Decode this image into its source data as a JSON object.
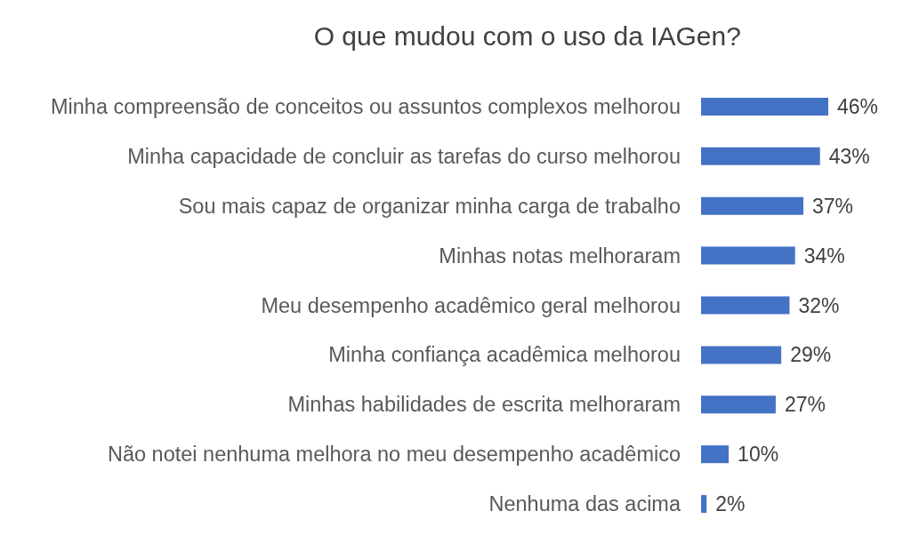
{
  "chart_data": {
    "type": "bar",
    "orientation": "horizontal",
    "title": "O que mudou com o uso da IAGen?",
    "categories": [
      "Minha compreensão de conceitos ou assuntos complexos melhorou",
      "Minha capacidade de concluir as tarefas do curso melhorou",
      "Sou mais capaz de organizar minha carga de trabalho",
      "Minhas notas melhoraram",
      "Meu desempenho acadêmico geral melhorou",
      "Minha confiança acadêmica melhorou",
      "Minhas habilidades de escrita melhoraram",
      "Não notei nenhuma melhora no meu desempenho acadêmico",
      "Nenhuma das acima"
    ],
    "values": [
      46,
      43,
      37,
      34,
      32,
      29,
      27,
      10,
      2
    ],
    "value_labels": [
      "46%",
      "43%",
      "37%",
      "34%",
      "32%",
      "29%",
      "27%",
      "10%",
      "2%"
    ],
    "color": "#4472c4"
  }
}
